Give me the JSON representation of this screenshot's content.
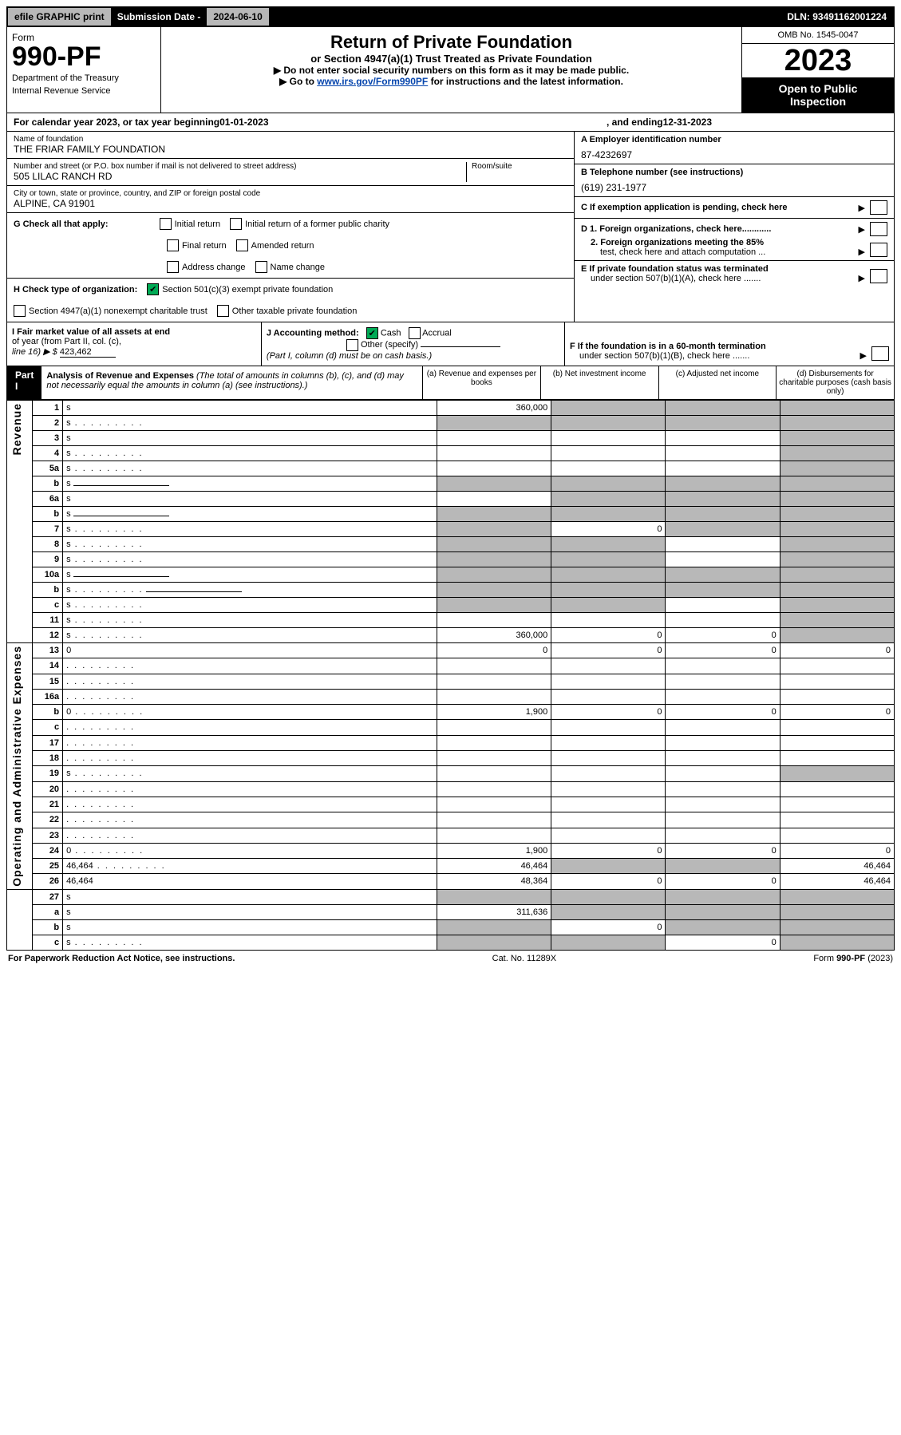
{
  "topbar": {
    "efile": "efile GRAPHIC print",
    "subdate_label": "Submission Date - ",
    "subdate": "2024-06-10",
    "dln_label": "DLN: ",
    "dln": "93491162001224"
  },
  "header": {
    "form_word": "Form",
    "form_num": "990-PF",
    "dept1": "Department of the Treasury",
    "dept2": "Internal Revenue Service",
    "title": "Return of Private Foundation",
    "subtitle": "or Section 4947(a)(1) Trust Treated as Private Foundation",
    "instr1": "▶ Do not enter social security numbers on this form as it may be made public.",
    "instr2_pre": "▶ Go to ",
    "instr2_link": "www.irs.gov/Form990PF",
    "instr2_post": " for instructions and the latest information.",
    "omb": "OMB No. 1545-0047",
    "year": "2023",
    "openpub1": "Open to Public",
    "openpub2": "Inspection"
  },
  "cal": {
    "pre": "For calendar year 2023, or tax year beginning ",
    "begin": "01-01-2023",
    "mid": " , and ending ",
    "end": "12-31-2023"
  },
  "id": {
    "name_label": "Name of foundation",
    "name": "THE FRIAR FAMILY FOUNDATION",
    "addr_label": "Number and street (or P.O. box number if mail is not delivered to street address)",
    "addr": "505 LILAC RANCH RD",
    "room_label": "Room/suite",
    "room": "",
    "city_label": "City or town, state or province, country, and ZIP or foreign postal code",
    "city": "ALPINE, CA  91901",
    "a_label": "A Employer identification number",
    "a_val": "87-4232697",
    "b_label": "B Telephone number (see instructions)",
    "b_val": "(619) 231-1977",
    "c_label": "C If exemption application is pending, check here"
  },
  "g": {
    "label": "G Check all that apply:",
    "opts": [
      "Initial return",
      "Initial return of a former public charity",
      "Final return",
      "Amended return",
      "Address change",
      "Name change"
    ]
  },
  "h": {
    "label": "H Check type of organization:",
    "opt1": "Section 501(c)(3) exempt private foundation",
    "opt2": "Section 4947(a)(1) nonexempt charitable trust",
    "opt3": "Other taxable private foundation"
  },
  "d": {
    "d1": "D 1. Foreign organizations, check here............",
    "d2a": "2. Foreign organizations meeting the 85%",
    "d2b": "test, check here and attach computation ...",
    "e1": "E  If private foundation status was terminated",
    "e2": "under section 507(b)(1)(A), check here .......",
    "f1": "F  If the foundation is in a 60-month termination",
    "f2": "under section 507(b)(1)(B), check here ......."
  },
  "i": {
    "label1": "I Fair market value of all assets at end",
    "label2": "of year (from Part II, col. (c),",
    "label3": "line 16) ▶ $",
    "val": "423,462"
  },
  "j": {
    "label": "J Accounting method:",
    "cash": "Cash",
    "accrual": "Accrual",
    "other": "Other (specify)",
    "note": "(Part I, column (d) must be on cash basis.)"
  },
  "part1": {
    "label": "Part I",
    "title": "Analysis of Revenue and Expenses",
    "sub": " (The total of amounts in columns (b), (c), and (d) may not necessarily equal the amounts in column (a) (see instructions).)",
    "cols": [
      "(a)  Revenue and expenses per books",
      "(b)  Net investment income",
      "(c)  Adjusted net income",
      "(d)  Disbursements for charitable purposes (cash basis only)"
    ]
  },
  "sides": {
    "rev": "Revenue",
    "exp": "Operating and Administrative Expenses"
  },
  "rows": [
    {
      "side": "rev_start",
      "n": "1",
      "d": "s",
      "a": "360,000",
      "b": "s",
      "c": "s"
    },
    {
      "n": "2",
      "d": "s",
      "dots": 1,
      "a": "s",
      "b": "s",
      "c": "s"
    },
    {
      "n": "3",
      "d": "s",
      "a": "",
      "b": "",
      "c": ""
    },
    {
      "n": "4",
      "d": "s",
      "dots": 1,
      "a": "",
      "b": "",
      "c": ""
    },
    {
      "n": "5a",
      "d": "s",
      "dots": 1,
      "a": "",
      "b": "",
      "c": ""
    },
    {
      "n": "b",
      "d": "s",
      "line": 1,
      "a": "s",
      "b": "s",
      "c": "s"
    },
    {
      "n": "6a",
      "d": "s",
      "a": "",
      "b": "s",
      "c": "s"
    },
    {
      "n": "b",
      "d": "s",
      "line": 1,
      "a": "s",
      "b": "s",
      "c": "s"
    },
    {
      "n": "7",
      "d": "s",
      "dots": 1,
      "a": "s",
      "b": "0",
      "c": "s"
    },
    {
      "n": "8",
      "d": "s",
      "dots": 1,
      "a": "s",
      "b": "s",
      "c": ""
    },
    {
      "n": "9",
      "d": "s",
      "dots": 1,
      "a": "s",
      "b": "s",
      "c": ""
    },
    {
      "n": "10a",
      "d": "s",
      "line": 1,
      "a": "s",
      "b": "s",
      "c": "s"
    },
    {
      "n": "b",
      "d": "s",
      "dots": 1,
      "line": 1,
      "a": "s",
      "b": "s",
      "c": "s"
    },
    {
      "n": "c",
      "d": "s",
      "dots": 1,
      "a": "s",
      "b": "s",
      "c": ""
    },
    {
      "n": "11",
      "d": "s",
      "dots": 1,
      "a": "",
      "b": "",
      "c": ""
    },
    {
      "side": "rev_end",
      "n": "12",
      "d": "s",
      "dots": 1,
      "a": "360,000",
      "b": "0",
      "c": "0"
    },
    {
      "side": "exp_start",
      "n": "13",
      "d": "0",
      "a": "0",
      "b": "0",
      "c": "0"
    },
    {
      "n": "14",
      "d": "",
      "dots": 1,
      "a": "",
      "b": "",
      "c": ""
    },
    {
      "n": "15",
      "d": "",
      "dots": 1,
      "a": "",
      "b": "",
      "c": ""
    },
    {
      "n": "16a",
      "d": "",
      "dots": 1,
      "a": "",
      "b": "",
      "c": ""
    },
    {
      "n": "b",
      "d": "0",
      "dots": 1,
      "a": "1,900",
      "b": "0",
      "c": "0"
    },
    {
      "n": "c",
      "d": "",
      "dots": 1,
      "a": "",
      "b": "",
      "c": ""
    },
    {
      "n": "17",
      "d": "",
      "dots": 1,
      "a": "",
      "b": "",
      "c": ""
    },
    {
      "n": "18",
      "d": "",
      "dots": 1,
      "a": "",
      "b": "",
      "c": ""
    },
    {
      "n": "19",
      "d": "s",
      "dots": 1,
      "a": "",
      "b": "",
      "c": ""
    },
    {
      "n": "20",
      "d": "",
      "dots": 1,
      "a": "",
      "b": "",
      "c": ""
    },
    {
      "n": "21",
      "d": "",
      "dots": 1,
      "a": "",
      "b": "",
      "c": ""
    },
    {
      "n": "22",
      "d": "",
      "dots": 1,
      "a": "",
      "b": "",
      "c": ""
    },
    {
      "n": "23",
      "d": "",
      "dots": 1,
      "a": "",
      "b": "",
      "c": ""
    },
    {
      "n": "24",
      "d": "0",
      "dots": 1,
      "a": "1,900",
      "b": "0",
      "c": "0"
    },
    {
      "n": "25",
      "d": "46,464",
      "dots": 1,
      "a": "46,464",
      "b": "s",
      "c": "s"
    },
    {
      "side": "exp_end",
      "n": "26",
      "d": "46,464",
      "a": "48,364",
      "b": "0",
      "c": "0"
    },
    {
      "n": "27",
      "d": "s",
      "a": "s",
      "b": "s",
      "c": "s"
    },
    {
      "n": "a",
      "d": "s",
      "a": "311,636",
      "b": "s",
      "c": "s"
    },
    {
      "n": "b",
      "d": "s",
      "a": "s",
      "b": "0",
      "c": "s"
    },
    {
      "n": "c",
      "d": "s",
      "dots": 1,
      "a": "s",
      "b": "s",
      "c": "0"
    }
  ],
  "footer": {
    "left": "For Paperwork Reduction Act Notice, see instructions.",
    "mid": "Cat. No. 11289X",
    "right": "Form 990-PF (2023)"
  }
}
